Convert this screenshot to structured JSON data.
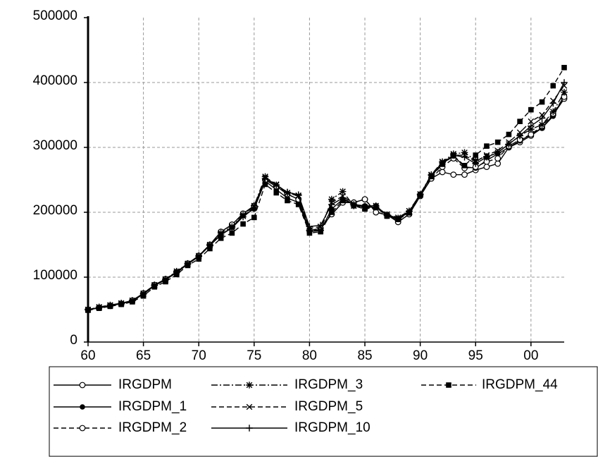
{
  "chart_data": {
    "type": "line",
    "categories": [
      "60",
      null,
      null,
      null,
      null,
      "65",
      null,
      null,
      null,
      null,
      "70",
      null,
      null,
      null,
      null,
      "75",
      null,
      null,
      null,
      null,
      "80",
      null,
      null,
      null,
      null,
      "85",
      null,
      null,
      null,
      null,
      "90",
      null,
      null,
      null,
      null,
      "95",
      null,
      null,
      null,
      null,
      "00",
      null,
      null,
      null
    ],
    "ylim": [
      0,
      500000
    ],
    "yticks": [
      0,
      100000,
      200000,
      300000,
      400000,
      500000
    ],
    "grid": true,
    "legend": "bottom",
    "series": [
      {
        "name": "IRGDPM",
        "color": "#000000",
        "marker": "open-circle",
        "line_style": "solid",
        "values": [
          50000,
          53000,
          56000,
          59000,
          64000,
          75000,
          88000,
          97000,
          108000,
          121000,
          133000,
          150000,
          170000,
          181000,
          198000,
          210000,
          250000,
          240000,
          228000,
          220000,
          172000,
          175000,
          197000,
          215000,
          215000,
          220000,
          200000,
          196000,
          185000,
          197000,
          225000,
          252000,
          262000,
          258000,
          258000,
          265000,
          270000,
          275000,
          300000,
          308000,
          318000,
          330000,
          350000,
          375000
        ]
      },
      {
        "name": "IRGDPM_1",
        "color": "#000000",
        "marker": "filled-circle",
        "line_style": "solid",
        "values": [
          49000,
          53000,
          56000,
          59000,
          63000,
          74000,
          87000,
          96000,
          108000,
          121000,
          132000,
          149000,
          165000,
          177000,
          195000,
          205000,
          248000,
          235000,
          222000,
          215000,
          170000,
          172000,
          205000,
          220000,
          212000,
          210000,
          210000,
          195000,
          190000,
          200000,
          228000,
          256000,
          275000,
          287000,
          270000,
          268000,
          280000,
          290000,
          300000,
          310000,
          320000,
          330000,
          348000,
          380000
        ]
      },
      {
        "name": "IRGDPM_2",
        "color": "#000000",
        "marker": "open-circle",
        "line_style": "dashed",
        "values": [
          50000,
          53000,
          56000,
          59000,
          64000,
          75000,
          88000,
          97000,
          108000,
          121000,
          133000,
          150000,
          170000,
          181000,
          198000,
          210000,
          250000,
          240000,
          228000,
          220000,
          172000,
          175000,
          197000,
          215000,
          215000,
          220000,
          200000,
          196000,
          185000,
          197000,
          225000,
          252000,
          270000,
          283000,
          268000,
          270000,
          278000,
          283000,
          302000,
          312000,
          320000,
          333000,
          352000,
          378000
        ]
      },
      {
        "name": "IRGDPM_3",
        "color": "#000000",
        "marker": "asterisk",
        "line_style": "dash-dot",
        "values": [
          50000,
          54000,
          57000,
          60000,
          64000,
          75000,
          88000,
          97000,
          109000,
          121000,
          133000,
          150000,
          168000,
          178000,
          196000,
          210000,
          255000,
          242000,
          230000,
          226000,
          172000,
          172000,
          220000,
          232000,
          210000,
          208000,
          210000,
          195000,
          190000,
          202000,
          228000,
          258000,
          278000,
          290000,
          292000,
          280000,
          286000,
          292000,
          305000,
          318000,
          328000,
          335000,
          355000,
          385000
        ]
      },
      {
        "name": "IRGDPM_5",
        "color": "#000000",
        "marker": "cross",
        "line_style": "dashed",
        "values": [
          50000,
          53000,
          56000,
          59000,
          64000,
          74000,
          87000,
          96000,
          107000,
          120000,
          132000,
          149000,
          166000,
          176000,
          194000,
          208000,
          253000,
          243000,
          230000,
          225000,
          175000,
          178000,
          215000,
          225000,
          213000,
          207000,
          208000,
          197000,
          192000,
          202000,
          228000,
          257000,
          277000,
          288000,
          288000,
          278000,
          288000,
          295000,
          308000,
          323000,
          340000,
          350000,
          372000,
          395000
        ]
      },
      {
        "name": "IRGDPM_10",
        "color": "#000000",
        "marker": "plus",
        "line_style": "solid",
        "values": [
          50000,
          53000,
          56000,
          59000,
          64000,
          74000,
          87000,
          96000,
          107000,
          120000,
          132000,
          149000,
          165000,
          176000,
          193000,
          206000,
          252000,
          242000,
          231000,
          227000,
          178000,
          180000,
          212000,
          222000,
          212000,
          208000,
          208000,
          196000,
          191000,
          201000,
          227000,
          257000,
          276000,
          288000,
          285000,
          275000,
          285000,
          292000,
          305000,
          318000,
          333000,
          345000,
          368000,
          400000
        ]
      },
      {
        "name": "IRGDPM_44",
        "color": "#000000",
        "marker": "square",
        "line_style": "dashed",
        "values": [
          49000,
          52000,
          55000,
          58000,
          62000,
          71000,
          85000,
          93000,
          104000,
          118000,
          128000,
          144000,
          160000,
          168000,
          182000,
          192000,
          243000,
          230000,
          218000,
          212000,
          168000,
          170000,
          200000,
          218000,
          210000,
          205000,
          208000,
          194000,
          189000,
          199000,
          226000,
          255000,
          274000,
          287000,
          272000,
          288000,
          302000,
          308000,
          320000,
          340000,
          358000,
          370000,
          395000,
          423000
        ]
      }
    ]
  }
}
